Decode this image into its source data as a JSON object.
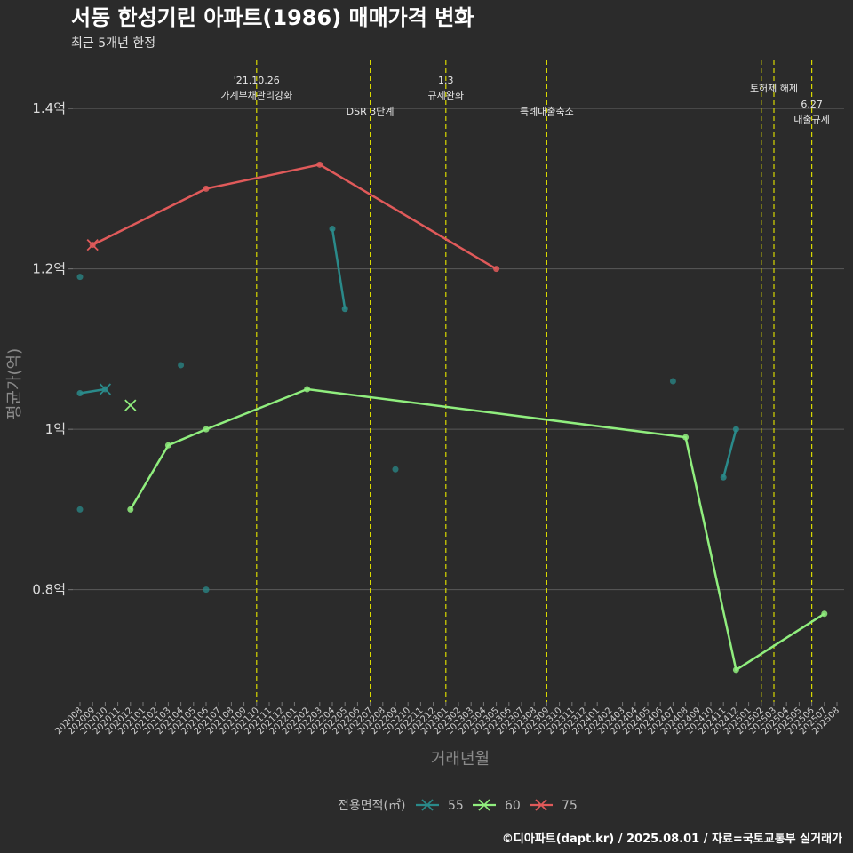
{
  "header": {
    "title": "서동 한성기린 아파트(1986) 매매가격 변화",
    "subtitle": "최근 5개년 한정",
    "caption": "©디아파트(dapt.kr) / 2025.08.01 / 자료=국토교통부 실거래가"
  },
  "chart_data": {
    "type": "line",
    "xlabel": "거래년월",
    "ylabel": "평균가(억)",
    "x_categories": [
      "202008",
      "202009",
      "202010",
      "202011",
      "202012",
      "202101",
      "202102",
      "202103",
      "202104",
      "202105",
      "202106",
      "202107",
      "202108",
      "202109",
      "202110",
      "202111",
      "202112",
      "202201",
      "202202",
      "202203",
      "202204",
      "202205",
      "202206",
      "202207",
      "202208",
      "202209",
      "202210",
      "202211",
      "202212",
      "202301",
      "202302",
      "202303",
      "202304",
      "202305",
      "202306",
      "202307",
      "202308",
      "202309",
      "202310",
      "202311",
      "202312",
      "202401",
      "202402",
      "202403",
      "202404",
      "202405",
      "202406",
      "202407",
      "202408",
      "202409",
      "202410",
      "202411",
      "202412",
      "202501",
      "202502",
      "202503",
      "202504",
      "202505",
      "202506",
      "202507",
      "202508"
    ],
    "y_ticks": [
      {
        "value": 0.8,
        "label": "0.8억"
      },
      {
        "value": 1.0,
        "label": "1억"
      },
      {
        "value": 1.2,
        "label": "1.2억"
      },
      {
        "value": 1.4,
        "label": "1.4억"
      }
    ],
    "ylim": [
      0.66,
      1.46
    ],
    "grid": true,
    "legend": {
      "title": "전용면적(㎡)",
      "placement": "bottom"
    },
    "series": [
      {
        "name": "55",
        "color": "#2a8a8a",
        "lines": [
          [
            {
              "x": "202008",
              "y": 1.045
            },
            {
              "x": "202010",
              "y": 1.05
            }
          ],
          [
            {
              "x": "202204",
              "y": 1.25
            },
            {
              "x": "202205",
              "y": 1.15
            }
          ],
          [
            {
              "x": "202411",
              "y": 0.94
            },
            {
              "x": "202412",
              "y": 1.0
            }
          ]
        ],
        "points": [
          {
            "x": "202008",
            "y": 1.19
          },
          {
            "x": "202008",
            "y": 0.9
          },
          {
            "x": "202104",
            "y": 1.08
          },
          {
            "x": "202106",
            "y": 0.8
          },
          {
            "x": "202209",
            "y": 0.95
          },
          {
            "x": "202407",
            "y": 1.06
          }
        ],
        "crosses": [
          {
            "x": "202010",
            "y": 1.05
          }
        ]
      },
      {
        "name": "60",
        "color": "#90ee7e",
        "lines": [
          [
            {
              "x": "202012",
              "y": 0.9
            },
            {
              "x": "202103",
              "y": 0.98
            },
            {
              "x": "202106",
              "y": 1.0
            },
            {
              "x": "202202",
              "y": 1.05
            },
            {
              "x": "202408",
              "y": 0.99
            },
            {
              "x": "202412",
              "y": 0.7
            },
            {
              "x": "202507",
              "y": 0.77
            }
          ]
        ],
        "points": [],
        "crosses": [
          {
            "x": "202012",
            "y": 1.03
          }
        ]
      },
      {
        "name": "75",
        "color": "#e05a5a",
        "lines": [
          [
            {
              "x": "202009",
              "y": 1.23
            },
            {
              "x": "202106",
              "y": 1.3
            },
            {
              "x": "202203",
              "y": 1.33
            },
            {
              "x": "202305",
              "y": 1.2
            }
          ]
        ],
        "points": [],
        "crosses": [
          {
            "x": "202009",
            "y": 1.23
          }
        ]
      }
    ],
    "events": [
      {
        "x": "202110",
        "lines": [
          "'21.10.26",
          "가계부채관리강화"
        ],
        "row": "high"
      },
      {
        "x": "202207",
        "lines": [
          "DSR 3단계"
        ],
        "row": "low"
      },
      {
        "x": "202301",
        "lines": [
          "1.3",
          "규제완화"
        ],
        "row": "high"
      },
      {
        "x": "202309",
        "lines": [
          "특례대출축소"
        ],
        "row": "low"
      },
      {
        "x": "202502",
        "lines": [],
        "row": "high"
      },
      {
        "x": "202503",
        "lines": [
          "토허제 해제"
        ],
        "row": "mid"
      },
      {
        "x": "202506",
        "lines": [
          "6.27",
          "대출규제"
        ],
        "row": "lowpair"
      }
    ]
  }
}
